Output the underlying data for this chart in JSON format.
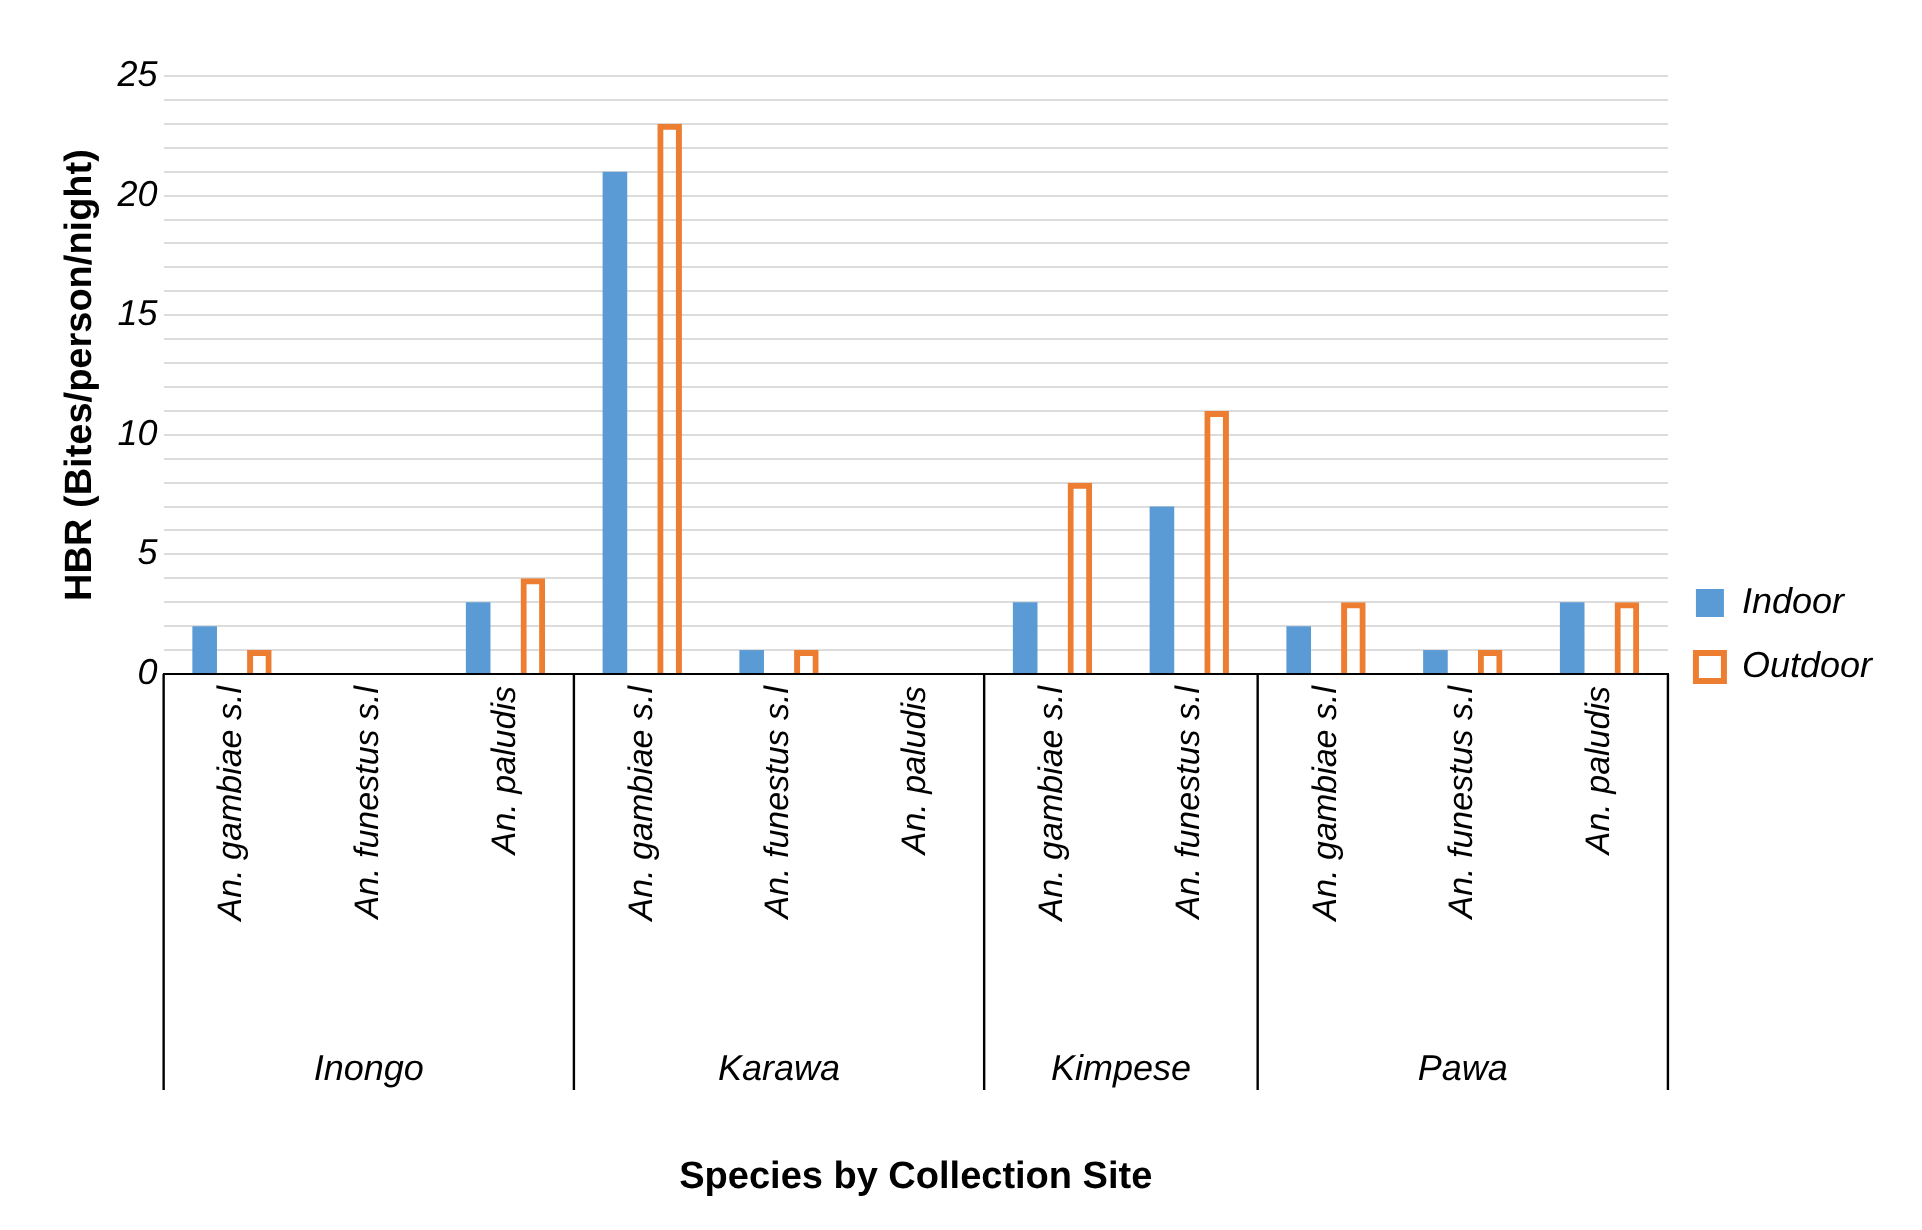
{
  "chart_data": {
    "type": "bar",
    "ylabel": "HBR (Bites/person/night)",
    "categories": [
      "An. gambiae s.l",
      "An. funestus s.l",
      "An. paludis",
      "An. gambiae s.l",
      "An. funestus s.l",
      "An. paludis",
      "An. gambiae s.l",
      "An. funestus s.l",
      "An. gambiae s.l",
      "An. funestus s.l",
      "An. paludis"
    ],
    "series": [
      {
        "name": "Indoor",
        "color": "#5b9bd5",
        "values": [
          2,
          0,
          3,
          21,
          1,
          0,
          3,
          7,
          2,
          1,
          3
        ]
      },
      {
        "name": "Outdoor",
        "color": "#ed7d31",
        "values": [
          1,
          0,
          4,
          23,
          1,
          0,
          8,
          11,
          3,
          1,
          3
        ]
      }
    ],
    "annotations": [
      "Inongo",
      "Karawa",
      "Kimpese",
      "Pawa",
      "Species by Collection Site"
    ],
    "ylim": [
      0,
      25
    ],
    "yticks": [
      0,
      {
        "value": 1,
        "label": null
      },
      {
        "value": 2,
        "label": null
      },
      {
        "value": 3,
        "label": null
      },
      {
        "value": 4,
        "label": null
      },
      5,
      {
        "value": 6,
        "label": null
      },
      {
        "value": 7,
        "label": null
      },
      {
        "value": 8,
        "label": null
      },
      {
        "value": 9,
        "label": null
      },
      10,
      {
        "value": 11,
        "label": null
      },
      {
        "value": 12,
        "label": null
      },
      {
        "value": 13,
        "label": null
      },
      {
        "value": 14,
        "label": null
      },
      15,
      {
        "value": 16,
        "label": null
      },
      {
        "value": 17,
        "label": null
      },
      {
        "value": 18,
        "label": null
      },
      {
        "value": 19,
        "label": null
      },
      20,
      {
        "value": 21,
        "label": null
      },
      {
        "value": 22,
        "label": null
      },
      {
        "value": 23,
        "label": null
      },
      {
        "value": 24,
        "label": null
      },
      25
    ],
    "grid": "y",
    "legend": "right"
  }
}
